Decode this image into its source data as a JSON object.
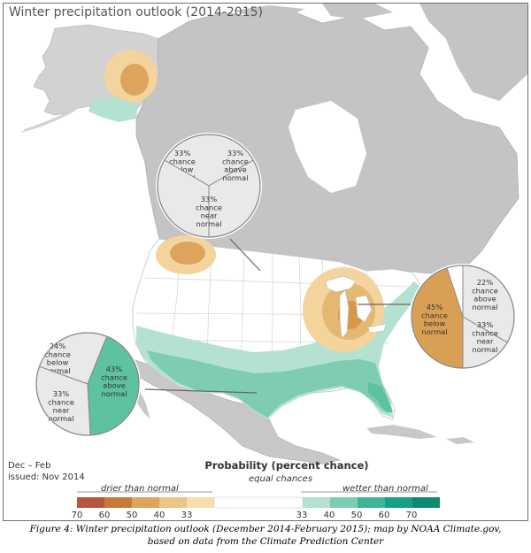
{
  "title": "Winter precipitation outlook (2014-2015)",
  "period": {
    "season": "Dec – Feb",
    "issued": "issued: Nov 2014"
  },
  "legend": {
    "title": "Probability (percent chance)",
    "drier_label": "drier than normal",
    "equal_label": "equal chances",
    "wetter_label": "wetter than normal",
    "drier_colors": [
      "#b8553a",
      "#c8793e",
      "#dca45c",
      "#ebc585",
      "#f6dfad"
    ],
    "wetter_colors": [
      "#b4e1d0",
      "#7fcdb1",
      "#3fb497",
      "#17a084",
      "#0f8a72"
    ],
    "drier_ticks": [
      "70",
      "60",
      "50",
      "40",
      "33"
    ],
    "wetter_ticks": [
      "33",
      "40",
      "50",
      "60",
      "70"
    ]
  },
  "pies": [
    {
      "id": "northwest",
      "slices": [
        {
          "pct": "33%",
          "text": [
            "33%",
            "chance",
            "below",
            "normal"
          ],
          "category": "below",
          "color": "#e9e9e9"
        },
        {
          "pct": "33%",
          "text": [
            "33%",
            "chance",
            "above",
            "normal"
          ],
          "category": "above",
          "color": "#e9e9e9"
        },
        {
          "pct": "33%",
          "text": [
            "33%",
            "chance",
            "near",
            "normal"
          ],
          "category": "near",
          "color": "#e9e9e9"
        }
      ]
    },
    {
      "id": "great-lakes",
      "slices": [
        {
          "pct": "45%",
          "text": [
            "45%",
            "chance",
            "below",
            "normal"
          ],
          "category": "below",
          "color": "#d9a055"
        },
        {
          "pct": "22%",
          "text": [
            "22%",
            "chance",
            "above",
            "normal"
          ],
          "category": "above",
          "color": "#e9e9e9"
        },
        {
          "pct": "33%",
          "text": [
            "33%",
            "chance",
            "near",
            "normal"
          ],
          "category": "near",
          "color": "#e9e9e9"
        }
      ]
    },
    {
      "id": "gulf",
      "slices": [
        {
          "pct": "24%",
          "text": [
            "24%",
            "chance",
            "below",
            "normal"
          ],
          "category": "below",
          "color": "#e9e9e9"
        },
        {
          "pct": "43%",
          "text": [
            "43%",
            "chance",
            "above",
            "normal"
          ],
          "category": "above",
          "color": "#5dc1a2"
        },
        {
          "pct": "33%",
          "text": [
            "33%",
            "chance",
            "near",
            "normal"
          ],
          "category": "near",
          "color": "#e9e9e9"
        }
      ]
    }
  ],
  "caption": {
    "line1": "Figure 4:  Winter precipitation outlook (December 2014-February 2015); map by NOAA Climate.gov,",
    "line2": "based on data from the Climate Prediction Center"
  }
}
